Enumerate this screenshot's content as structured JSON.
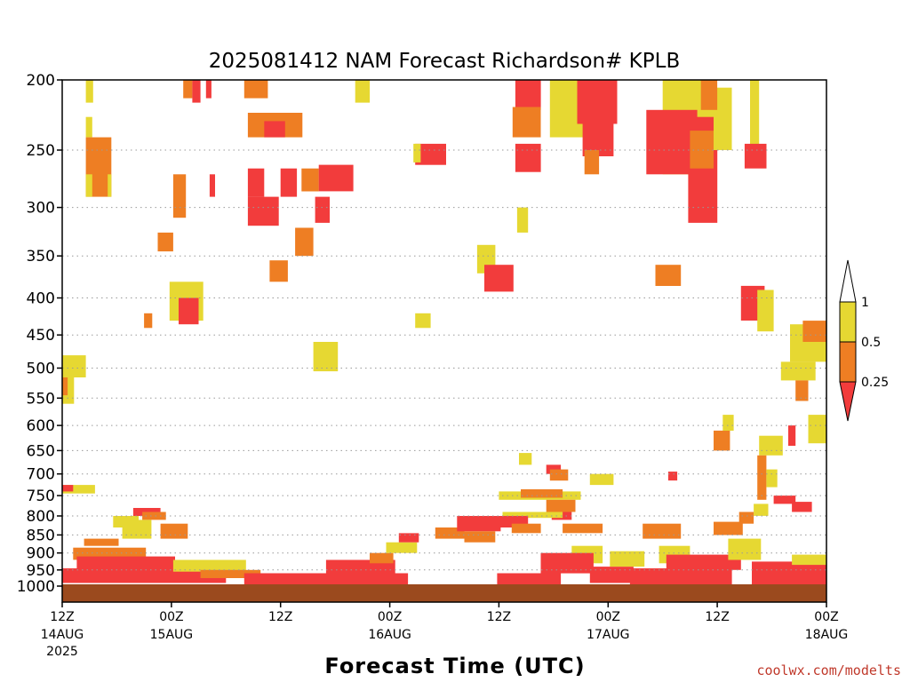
{
  "chart_data": {
    "type": "heatmap",
    "title": "2025081412 NAM Forecast Richardson# KPLB",
    "xlabel": "Forecast Time (UTC)",
    "ylabel": "",
    "credit": "coolwx.com/modelts",
    "y_axis": {
      "scale": "pressure (log)",
      "range": [
        1000,
        200
      ],
      "ticks": [
        200,
        250,
        300,
        350,
        400,
        450,
        500,
        550,
        600,
        650,
        700,
        750,
        800,
        850,
        900,
        950,
        1000
      ]
    },
    "x_axis": {
      "range_hours": [
        0,
        84
      ],
      "ticks": [
        {
          "hour": 0,
          "label": "12Z",
          "sub": "14AUG",
          "year": "2025"
        },
        {
          "hour": 12,
          "label": "00Z",
          "sub": "15AUG",
          "year": ""
        },
        {
          "hour": 24,
          "label": "12Z",
          "sub": "",
          "year": ""
        },
        {
          "hour": 36,
          "label": "00Z",
          "sub": "16AUG",
          "year": ""
        },
        {
          "hour": 48,
          "label": "12Z",
          "sub": "",
          "year": ""
        },
        {
          "hour": 60,
          "label": "00Z",
          "sub": "17AUG",
          "year": ""
        },
        {
          "hour": 72,
          "label": "12Z",
          "sub": "",
          "year": ""
        },
        {
          "hour": 84,
          "label": "00Z",
          "sub": "18AUG",
          "year": ""
        }
      ]
    },
    "colorbar": {
      "levels": [
        "1",
        "0.5",
        "0.25"
      ],
      "colors": {
        "above_1": "#ffffff",
        "0.5-1": "#e6d832",
        "0.25-0.5": "#ee7e23",
        "below_0.25": "#f23c3c"
      }
    },
    "surface_color": "#9b4a1e",
    "grid": "dotted horizontal at pressure ticks",
    "blobs": [
      {
        "h0": 2.6,
        "h1": 3.4,
        "p0": 200,
        "p1": 215,
        "level": "y"
      },
      {
        "h0": 2.6,
        "h1": 3.3,
        "p0": 225,
        "p1": 240,
        "level": "y"
      },
      {
        "h0": 2.6,
        "h1": 5.4,
        "p0": 240,
        "p1": 290,
        "level": "o"
      },
      {
        "h0": 2.6,
        "h1": 3.3,
        "p0": 270,
        "p1": 290,
        "level": "y"
      },
      {
        "h0": 5.0,
        "h1": 5.4,
        "p0": 270,
        "p1": 290,
        "level": "y"
      },
      {
        "h0": 13.3,
        "h1": 14.3,
        "p0": 200,
        "p1": 212,
        "level": "o"
      },
      {
        "h0": 14.3,
        "h1": 15.2,
        "p0": 200,
        "p1": 215,
        "level": "r"
      },
      {
        "h0": 15.8,
        "h1": 16.4,
        "p0": 200,
        "p1": 212,
        "level": "r"
      },
      {
        "h0": 20.0,
        "h1": 22.6,
        "p0": 200,
        "p1": 212,
        "level": "o"
      },
      {
        "h0": 20.4,
        "h1": 26.4,
        "p0": 222,
        "p1": 240,
        "level": "o"
      },
      {
        "h0": 22.2,
        "h1": 24.5,
        "p0": 228,
        "p1": 240,
        "level": "r"
      },
      {
        "h0": 20.4,
        "h1": 22.2,
        "p0": 265,
        "p1": 290,
        "level": "r"
      },
      {
        "h0": 24.0,
        "h1": 25.8,
        "p0": 265,
        "p1": 290,
        "level": "r"
      },
      {
        "h0": 20.4,
        "h1": 23.8,
        "p0": 290,
        "p1": 318,
        "level": "r"
      },
      {
        "h0": 26.3,
        "h1": 28.2,
        "p0": 265,
        "p1": 285,
        "level": "o"
      },
      {
        "h0": 28.2,
        "h1": 32.0,
        "p0": 262,
        "p1": 285,
        "level": "r"
      },
      {
        "h0": 27.8,
        "h1": 29.4,
        "p0": 290,
        "p1": 315,
        "level": "r"
      },
      {
        "h0": 25.6,
        "h1": 27.6,
        "p0": 320,
        "p1": 350,
        "level": "o"
      },
      {
        "h0": 22.8,
        "h1": 24.8,
        "p0": 355,
        "p1": 380,
        "level": "o"
      },
      {
        "h0": 32.2,
        "h1": 33.8,
        "p0": 200,
        "p1": 215,
        "level": "y"
      },
      {
        "h0": 38.8,
        "h1": 42.2,
        "p0": 245,
        "p1": 262,
        "level": "r"
      },
      {
        "h0": 38.6,
        "h1": 39.4,
        "p0": 245,
        "p1": 260,
        "level": "y"
      },
      {
        "h0": 10.5,
        "h1": 12.2,
        "p0": 325,
        "p1": 345,
        "level": "o"
      },
      {
        "h0": 11.8,
        "h1": 15.5,
        "p0": 380,
        "p1": 430,
        "level": "y"
      },
      {
        "h0": 12.8,
        "h1": 15.0,
        "p0": 400,
        "p1": 435,
        "level": "r"
      },
      {
        "h0": 12.2,
        "h1": 13.6,
        "p0": 270,
        "p1": 310,
        "level": "o"
      },
      {
        "h0": 16.2,
        "h1": 16.8,
        "p0": 270,
        "p1": 290,
        "level": "r"
      },
      {
        "h0": 9.0,
        "h1": 9.9,
        "p0": 420,
        "p1": 440,
        "level": "o"
      },
      {
        "h0": 38.8,
        "h1": 40.5,
        "p0": 420,
        "p1": 440,
        "level": "y"
      },
      {
        "h0": 27.6,
        "h1": 30.3,
        "p0": 460,
        "p1": 505,
        "level": "y"
      },
      {
        "h0": 0.0,
        "h1": 2.6,
        "p0": 480,
        "p1": 515,
        "level": "y"
      },
      {
        "h0": 0.0,
        "h1": 1.3,
        "p0": 515,
        "p1": 560,
        "level": "y"
      },
      {
        "h0": 0.0,
        "h1": 0.6,
        "p0": 515,
        "p1": 545,
        "level": "o"
      },
      {
        "h0": 0.0,
        "h1": 3.6,
        "p0": 725,
        "p1": 745,
        "level": "y"
      },
      {
        "h0": 0.0,
        "h1": 1.2,
        "p0": 725,
        "p1": 740,
        "level": "r"
      },
      {
        "h0": 49.8,
        "h1": 52.6,
        "p0": 200,
        "p1": 220,
        "level": "r"
      },
      {
        "h0": 49.5,
        "h1": 52.6,
        "p0": 218,
        "p1": 240,
        "level": "o"
      },
      {
        "h0": 49.8,
        "h1": 52.6,
        "p0": 245,
        "p1": 268,
        "level": "r"
      },
      {
        "h0": 53.6,
        "h1": 59.4,
        "p0": 200,
        "p1": 240,
        "level": "y"
      },
      {
        "h0": 56.6,
        "h1": 61.0,
        "p0": 200,
        "p1": 230,
        "level": "r"
      },
      {
        "h0": 57.2,
        "h1": 60.6,
        "p0": 225,
        "p1": 255,
        "level": "r"
      },
      {
        "h0": 57.4,
        "h1": 59.0,
        "p0": 250,
        "p1": 270,
        "level": "o"
      },
      {
        "h0": 45.6,
        "h1": 47.6,
        "p0": 338,
        "p1": 370,
        "level": "y"
      },
      {
        "h0": 46.4,
        "h1": 49.6,
        "p0": 360,
        "p1": 392,
        "level": "r"
      },
      {
        "h0": 50.0,
        "h1": 51.2,
        "p0": 300,
        "p1": 325,
        "level": "y"
      },
      {
        "h0": 66.0,
        "h1": 71.8,
        "p0": 200,
        "p1": 270,
        "level": "y"
      },
      {
        "h0": 64.2,
        "h1": 69.8,
        "p0": 220,
        "p1": 270,
        "level": "r"
      },
      {
        "h0": 68.8,
        "h1": 72.0,
        "p0": 225,
        "p1": 315,
        "level": "r"
      },
      {
        "h0": 69.0,
        "h1": 71.6,
        "p0": 235,
        "p1": 265,
        "level": "o"
      },
      {
        "h0": 71.6,
        "h1": 73.6,
        "p0": 205,
        "p1": 250,
        "level": "y"
      },
      {
        "h0": 70.2,
        "h1": 72.0,
        "p0": 195,
        "p1": 220,
        "level": "o"
      },
      {
        "h0": 65.2,
        "h1": 68.0,
        "p0": 360,
        "p1": 385,
        "level": "o"
      },
      {
        "h0": 75.6,
        "h1": 76.6,
        "p0": 200,
        "p1": 260,
        "level": "y"
      },
      {
        "h0": 75.0,
        "h1": 77.4,
        "p0": 245,
        "p1": 265,
        "level": "r"
      },
      {
        "h0": 74.6,
        "h1": 77.2,
        "p0": 385,
        "p1": 430,
        "level": "r"
      },
      {
        "h0": 76.4,
        "h1": 78.2,
        "p0": 390,
        "p1": 445,
        "level": "y"
      },
      {
        "h0": 80.0,
        "h1": 84.0,
        "p0": 435,
        "p1": 490,
        "level": "y"
      },
      {
        "h0": 81.4,
        "h1": 84.0,
        "p0": 430,
        "p1": 460,
        "level": "o"
      },
      {
        "h0": 79.0,
        "h1": 82.8,
        "p0": 490,
        "p1": 520,
        "level": "y"
      },
      {
        "h0": 80.6,
        "h1": 82.0,
        "p0": 520,
        "p1": 555,
        "level": "o"
      },
      {
        "h0": 82.0,
        "h1": 84.0,
        "p0": 580,
        "p1": 635,
        "level": "y"
      },
      {
        "h0": 71.6,
        "h1": 73.4,
        "p0": 610,
        "p1": 650,
        "level": "o"
      },
      {
        "h0": 72.6,
        "h1": 73.8,
        "p0": 580,
        "p1": 610,
        "level": "y"
      },
      {
        "h0": 76.6,
        "h1": 79.2,
        "p0": 620,
        "p1": 660,
        "level": "y"
      },
      {
        "h0": 79.8,
        "h1": 80.6,
        "p0": 600,
        "p1": 640,
        "level": "r"
      },
      {
        "h0": 76.4,
        "h1": 77.4,
        "p0": 660,
        "p1": 760,
        "level": "o"
      },
      {
        "h0": 77.4,
        "h1": 78.6,
        "p0": 690,
        "p1": 730,
        "level": "y"
      },
      {
        "h0": 66.6,
        "h1": 67.6,
        "p0": 695,
        "p1": 715,
        "level": "r"
      },
      {
        "h0": 78.2,
        "h1": 80.6,
        "p0": 750,
        "p1": 770,
        "level": "r"
      },
      {
        "h0": 80.2,
        "h1": 82.4,
        "p0": 765,
        "p1": 790,
        "level": "r"
      },
      {
        "h0": 76.0,
        "h1": 77.6,
        "p0": 770,
        "p1": 800,
        "level": "y"
      },
      {
        "h0": 50.2,
        "h1": 51.6,
        "p0": 655,
        "p1": 680,
        "level": "y"
      },
      {
        "h0": 53.2,
        "h1": 54.8,
        "p0": 680,
        "p1": 700,
        "level": "r"
      },
      {
        "h0": 53.6,
        "h1": 55.6,
        "p0": 690,
        "p1": 715,
        "level": "o"
      },
      {
        "h0": 48.0,
        "h1": 57.0,
        "p0": 740,
        "p1": 760,
        "level": "y"
      },
      {
        "h0": 50.4,
        "h1": 55.0,
        "p0": 735,
        "p1": 755,
        "level": "o"
      },
      {
        "h0": 53.2,
        "h1": 56.4,
        "p0": 760,
        "p1": 790,
        "level": "o"
      },
      {
        "h0": 53.8,
        "h1": 56.0,
        "p0": 790,
        "p1": 810,
        "level": "r"
      },
      {
        "h0": 48.4,
        "h1": 55.0,
        "p0": 790,
        "p1": 805,
        "level": "y"
      },
      {
        "h0": 58.0,
        "h1": 60.6,
        "p0": 700,
        "p1": 725,
        "level": "y"
      },
      {
        "h0": 7.8,
        "h1": 10.8,
        "p0": 780,
        "p1": 800,
        "level": "r"
      },
      {
        "h0": 8.8,
        "h1": 11.4,
        "p0": 790,
        "p1": 810,
        "level": "o"
      },
      {
        "h0": 5.6,
        "h1": 8.4,
        "p0": 800,
        "p1": 830,
        "level": "y"
      },
      {
        "h0": 6.6,
        "h1": 9.8,
        "p0": 810,
        "p1": 860,
        "level": "y"
      },
      {
        "h0": 2.4,
        "h1": 6.2,
        "p0": 860,
        "p1": 880,
        "level": "o"
      },
      {
        "h0": 10.8,
        "h1": 13.8,
        "p0": 820,
        "p1": 860,
        "level": "o"
      },
      {
        "h0": 1.2,
        "h1": 9.2,
        "p0": 885,
        "p1": 920,
        "level": "o"
      },
      {
        "h0": 1.6,
        "h1": 12.4,
        "p0": 910,
        "p1": 950,
        "level": "r"
      },
      {
        "h0": 0.0,
        "h1": 18.0,
        "p0": 945,
        "p1": 990,
        "level": "r"
      },
      {
        "h0": 12.2,
        "h1": 20.2,
        "p0": 920,
        "p1": 955,
        "level": "y"
      },
      {
        "h0": 15.2,
        "h1": 21.8,
        "p0": 950,
        "p1": 975,
        "level": "o"
      },
      {
        "h0": 20.0,
        "h1": 38.0,
        "p0": 960,
        "p1": 995,
        "level": "r"
      },
      {
        "h0": 29.0,
        "h1": 36.6,
        "p0": 920,
        "p1": 960,
        "level": "r"
      },
      {
        "h0": 33.8,
        "h1": 36.4,
        "p0": 900,
        "p1": 930,
        "level": "o"
      },
      {
        "h0": 35.6,
        "h1": 39.0,
        "p0": 870,
        "p1": 900,
        "level": "y"
      },
      {
        "h0": 37.0,
        "h1": 39.2,
        "p0": 845,
        "p1": 870,
        "level": "r"
      },
      {
        "h0": 41.0,
        "h1": 44.2,
        "p0": 830,
        "p1": 860,
        "level": "o"
      },
      {
        "h0": 43.4,
        "h1": 48.2,
        "p0": 800,
        "p1": 840,
        "level": "r"
      },
      {
        "h0": 44.2,
        "h1": 47.6,
        "p0": 840,
        "p1": 870,
        "level": "o"
      },
      {
        "h0": 48.0,
        "h1": 51.2,
        "p0": 800,
        "p1": 830,
        "level": "r"
      },
      {
        "h0": 49.4,
        "h1": 52.6,
        "p0": 820,
        "p1": 845,
        "level": "o"
      },
      {
        "h0": 55.0,
        "h1": 59.4,
        "p0": 820,
        "p1": 845,
        "level": "o"
      },
      {
        "h0": 56.0,
        "h1": 59.4,
        "p0": 880,
        "p1": 930,
        "level": "y"
      },
      {
        "h0": 52.6,
        "h1": 58.4,
        "p0": 900,
        "p1": 960,
        "level": "r"
      },
      {
        "h0": 47.8,
        "h1": 54.8,
        "p0": 960,
        "p1": 995,
        "level": "r"
      },
      {
        "h0": 58.0,
        "h1": 62.8,
        "p0": 940,
        "p1": 990,
        "level": "r"
      },
      {
        "h0": 60.2,
        "h1": 64.0,
        "p0": 895,
        "p1": 940,
        "level": "y"
      },
      {
        "h0": 63.8,
        "h1": 68.0,
        "p0": 820,
        "p1": 860,
        "level": "o"
      },
      {
        "h0": 65.6,
        "h1": 69.0,
        "p0": 880,
        "p1": 930,
        "level": "y"
      },
      {
        "h0": 66.4,
        "h1": 74.6,
        "p0": 905,
        "p1": 950,
        "level": "r"
      },
      {
        "h0": 62.4,
        "h1": 73.6,
        "p0": 945,
        "p1": 995,
        "level": "r"
      },
      {
        "h0": 71.6,
        "h1": 74.8,
        "p0": 815,
        "p1": 850,
        "level": "o"
      },
      {
        "h0": 73.2,
        "h1": 76.8,
        "p0": 860,
        "p1": 920,
        "level": "y"
      },
      {
        "h0": 75.8,
        "h1": 84.0,
        "p0": 925,
        "p1": 995,
        "level": "r"
      },
      {
        "h0": 80.2,
        "h1": 84.0,
        "p0": 905,
        "p1": 935,
        "level": "y"
      },
      {
        "h0": 74.4,
        "h1": 76.0,
        "p0": 790,
        "p1": 820,
        "level": "o"
      }
    ]
  }
}
